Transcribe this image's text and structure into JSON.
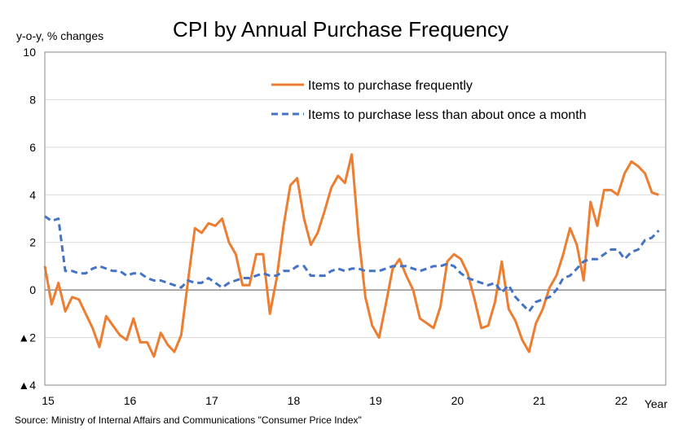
{
  "chart_data": {
    "type": "line",
    "title": "CPI by Annual Purchase Frequency",
    "ylabel": "y-o-y, % changes",
    "xlabel": "Year",
    "source": "Source: Ministry of Internal Affairs and Communications \"Consumer Price Index\"",
    "ylim": [
      -4,
      10
    ],
    "xlim": [
      2015.0,
      2022.583
    ],
    "yticks": [
      -4,
      -2,
      0,
      2,
      4,
      6,
      8,
      10
    ],
    "ytick_labels": [
      "▲4",
      "▲2",
      "0",
      "2",
      "4",
      "6",
      "8",
      "10"
    ],
    "xtick_labels": [
      {
        "label": "15",
        "x": 2015.0
      },
      {
        "label": "16",
        "x": 2016.0
      },
      {
        "label": "17",
        "x": 2017.0
      },
      {
        "label": "18",
        "x": 2018.0
      },
      {
        "label": "19",
        "x": 2019.0
      },
      {
        "label": "20",
        "x": 2020.0
      },
      {
        "label": "21",
        "x": 2021.0
      },
      {
        "label": "22",
        "x": 2022.0
      }
    ],
    "grid": "horizontal",
    "legend": "top-right",
    "series": [
      {
        "name": "Items to purchase frequently",
        "color": "#ED7D31",
        "style": "solid",
        "x_start": 2015.0,
        "x_step": 0.0833,
        "values": [
          1.0,
          -0.6,
          0.3,
          -0.9,
          -0.3,
          -0.4,
          -1.0,
          -1.6,
          -2.4,
          -1.1,
          -1.5,
          -1.9,
          -2.1,
          -1.2,
          -2.2,
          -2.2,
          -2.8,
          -1.8,
          -2.3,
          -2.6,
          -1.9,
          0.4,
          2.6,
          2.4,
          2.8,
          2.7,
          3.0,
          2.0,
          1.5,
          0.2,
          0.2,
          1.5,
          1.5,
          -1.0,
          0.5,
          2.7,
          4.4,
          4.7,
          3.0,
          1.9,
          2.4,
          3.3,
          4.3,
          4.8,
          4.5,
          5.7,
          2.3,
          -0.3,
          -1.5,
          -2.0,
          -0.6,
          0.9,
          1.3,
          0.6,
          0.0,
          -1.2,
          -1.4,
          -1.6,
          -0.7,
          1.2,
          1.5,
          1.3,
          0.7,
          -0.4,
          -1.6,
          -1.5,
          -0.5,
          1.2,
          -0.8,
          -1.3,
          -2.1,
          -2.6,
          -1.4,
          -0.8,
          0.1,
          0.6,
          1.5,
          2.6,
          1.9,
          0.4,
          3.7,
          2.7,
          4.2,
          4.2,
          4.0,
          4.9,
          5.4,
          5.2,
          4.9,
          4.1,
          4.0
        ]
      },
      {
        "name": "Items to purchase less than about once a month",
        "color": "#4472C4",
        "style": "dashed",
        "x_start": 2015.0,
        "x_step": 0.0833,
        "values": [
          3.1,
          2.9,
          3.0,
          0.8,
          0.8,
          0.7,
          0.7,
          0.9,
          1.0,
          0.9,
          0.8,
          0.8,
          0.6,
          0.7,
          0.7,
          0.5,
          0.4,
          0.4,
          0.3,
          0.2,
          0.1,
          0.4,
          0.3,
          0.3,
          0.5,
          0.3,
          0.1,
          0.3,
          0.4,
          0.5,
          0.5,
          0.6,
          0.7,
          0.6,
          0.6,
          0.8,
          0.8,
          1.0,
          1.0,
          0.6,
          0.6,
          0.6,
          0.8,
          0.9,
          0.8,
          0.9,
          0.9,
          0.8,
          0.8,
          0.8,
          0.9,
          1.0,
          1.0,
          1.0,
          0.9,
          0.8,
          0.9,
          1.0,
          1.0,
          1.1,
          1.0,
          0.7,
          0.5,
          0.4,
          0.3,
          0.2,
          0.3,
          -0.1,
          0.2,
          -0.3,
          -0.6,
          -0.9,
          -0.5,
          -0.4,
          -0.3,
          0.0,
          0.5,
          0.6,
          0.9,
          1.2,
          1.3,
          1.3,
          1.5,
          1.7,
          1.7,
          1.3,
          1.6,
          1.7,
          2.1,
          2.2,
          2.5
        ]
      }
    ]
  }
}
